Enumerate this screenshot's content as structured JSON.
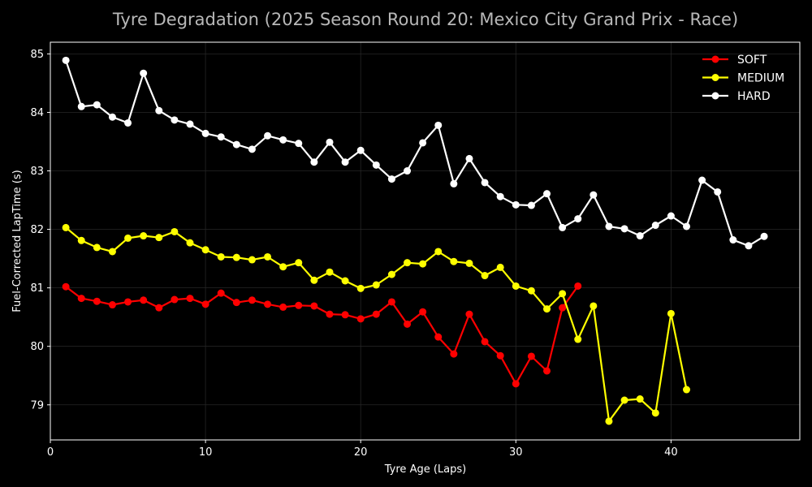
{
  "chart_data": {
    "type": "line",
    "title": "Tyre Degradation (2025 Season Round 20: Mexico City Grand Prix - Race)",
    "xlabel": "Tyre Age (Laps)",
    "ylabel": "Fuel-Corrected LapTime (s)",
    "xlim": [
      0,
      48.3
    ],
    "ylim": [
      78.4,
      85.2
    ],
    "xticks": [
      0,
      10,
      20,
      30,
      40
    ],
    "yticks": [
      79,
      80,
      81,
      82,
      83,
      84,
      85
    ],
    "grid": true,
    "legend_position": "top-right",
    "series": [
      {
        "name": "SOFT",
        "color": "#ff0000",
        "x": [
          1,
          2,
          3,
          4,
          5,
          6,
          7,
          8,
          9,
          10,
          11,
          12,
          13,
          14,
          15,
          16,
          17,
          18,
          19,
          20,
          21,
          22,
          23,
          24,
          25,
          26,
          27,
          28,
          29,
          30,
          31,
          32,
          33,
          34
        ],
        "y": [
          81.02,
          80.82,
          80.77,
          80.71,
          80.76,
          80.79,
          80.66,
          80.8,
          80.82,
          80.72,
          80.91,
          80.75,
          80.79,
          80.72,
          80.67,
          80.7,
          80.69,
          80.55,
          80.54,
          80.47,
          80.55,
          80.76,
          80.38,
          80.59,
          80.16,
          79.87,
          80.55,
          80.08,
          79.84,
          79.36,
          79.83,
          79.58,
          80.66,
          81.03
        ]
      },
      {
        "name": "MEDIUM",
        "color": "#ffff00",
        "x": [
          1,
          2,
          3,
          4,
          5,
          6,
          7,
          8,
          9,
          10,
          11,
          12,
          13,
          14,
          15,
          16,
          17,
          18,
          19,
          20,
          21,
          22,
          23,
          24,
          25,
          26,
          27,
          28,
          29,
          30,
          31,
          32,
          33,
          34,
          35,
          36,
          37,
          38,
          39,
          40,
          41
        ],
        "y": [
          82.03,
          81.81,
          81.69,
          81.62,
          81.85,
          81.89,
          81.86,
          81.96,
          81.77,
          81.65,
          81.53,
          81.52,
          81.48,
          81.53,
          81.36,
          81.43,
          81.13,
          81.27,
          81.12,
          80.99,
          81.05,
          81.23,
          81.43,
          81.41,
          81.62,
          81.45,
          81.42,
          81.21,
          81.35,
          81.03,
          80.95,
          80.64,
          80.9,
          80.12,
          80.69,
          78.72,
          79.08,
          79.1,
          78.86,
          80.56,
          79.26
        ]
      },
      {
        "name": "HARD",
        "color": "#ffffff",
        "x": [
          1,
          2,
          3,
          4,
          5,
          6,
          7,
          8,
          9,
          10,
          11,
          12,
          13,
          14,
          15,
          16,
          17,
          18,
          19,
          20,
          21,
          22,
          23,
          24,
          25,
          26,
          27,
          28,
          29,
          30,
          31,
          32,
          33,
          34,
          35,
          36,
          37,
          38,
          39,
          40,
          41,
          42,
          43,
          44,
          45,
          46
        ],
        "y": [
          84.89,
          84.1,
          84.13,
          83.92,
          83.82,
          84.67,
          84.03,
          83.87,
          83.8,
          83.64,
          83.58,
          83.45,
          83.37,
          83.6,
          83.53,
          83.47,
          83.15,
          83.49,
          83.15,
          83.35,
          83.1,
          82.86,
          83.0,
          83.48,
          83.78,
          82.78,
          83.21,
          82.8,
          82.56,
          82.42,
          82.41,
          82.61,
          82.03,
          82.18,
          82.59,
          82.05,
          82.01,
          81.89,
          82.07,
          82.23,
          82.05,
          82.84,
          82.64,
          81.82,
          81.72,
          81.88
        ]
      }
    ]
  }
}
